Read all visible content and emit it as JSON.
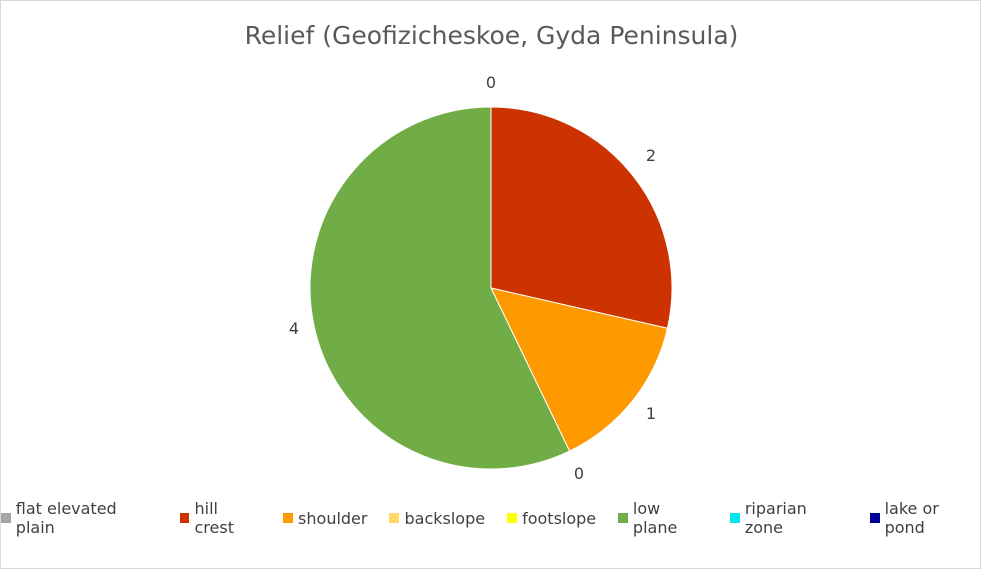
{
  "chart_data": {
    "type": "pie",
    "title": "Relief (Geofizicheskoe,  Gyda Peninsula)",
    "categories": [
      "flat elevated plain",
      "hill crest",
      "shoulder",
      "backslope",
      "footslope",
      "low plane",
      "riparian zone",
      "lake or pond"
    ],
    "values": [
      0,
      2,
      1,
      0,
      0,
      4,
      0,
      0
    ],
    "data_labels": [
      "0",
      "2",
      "1",
      "",
      "",
      "4",
      "",
      ""
    ],
    "colors": [
      "#a5a5a5",
      "#cc3300",
      "#ff9900",
      "#ffd966",
      "#ffff00",
      "#70ad47",
      "#00e5ee",
      "#000099"
    ],
    "legend_position": "bottom"
  },
  "extra_labels": [
    {
      "text": "0"
    }
  ]
}
